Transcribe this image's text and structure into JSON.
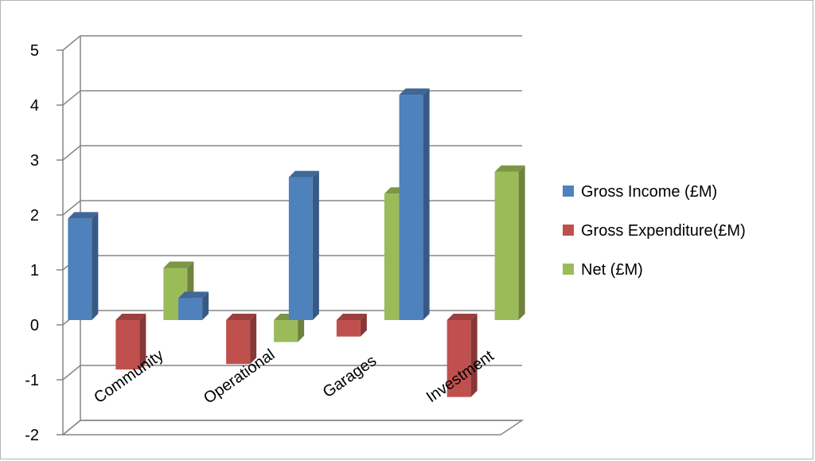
{
  "chart_data": {
    "type": "bar",
    "style": "3d-clustered-column",
    "categories": [
      "Community",
      "Operational",
      "Garages",
      "Investment"
    ],
    "series": [
      {
        "name": "Gross Income (£M)",
        "color": "#4F81BD",
        "values": [
          1.85,
          0.4,
          2.6,
          4.1
        ]
      },
      {
        "name": "Gross Expenditure(£M)",
        "color": "#C0504D",
        "values": [
          -0.9,
          -0.8,
          -0.3,
          -1.4
        ]
      },
      {
        "name": "Net (£M)",
        "color": "#9BBB59",
        "values": [
          0.95,
          -0.4,
          2.3,
          2.7
        ]
      }
    ],
    "ylim": [
      -2,
      5
    ],
    "yticks": [
      -2,
      -1,
      0,
      1,
      2,
      3,
      4,
      5
    ],
    "grid": true,
    "legend": "right"
  }
}
